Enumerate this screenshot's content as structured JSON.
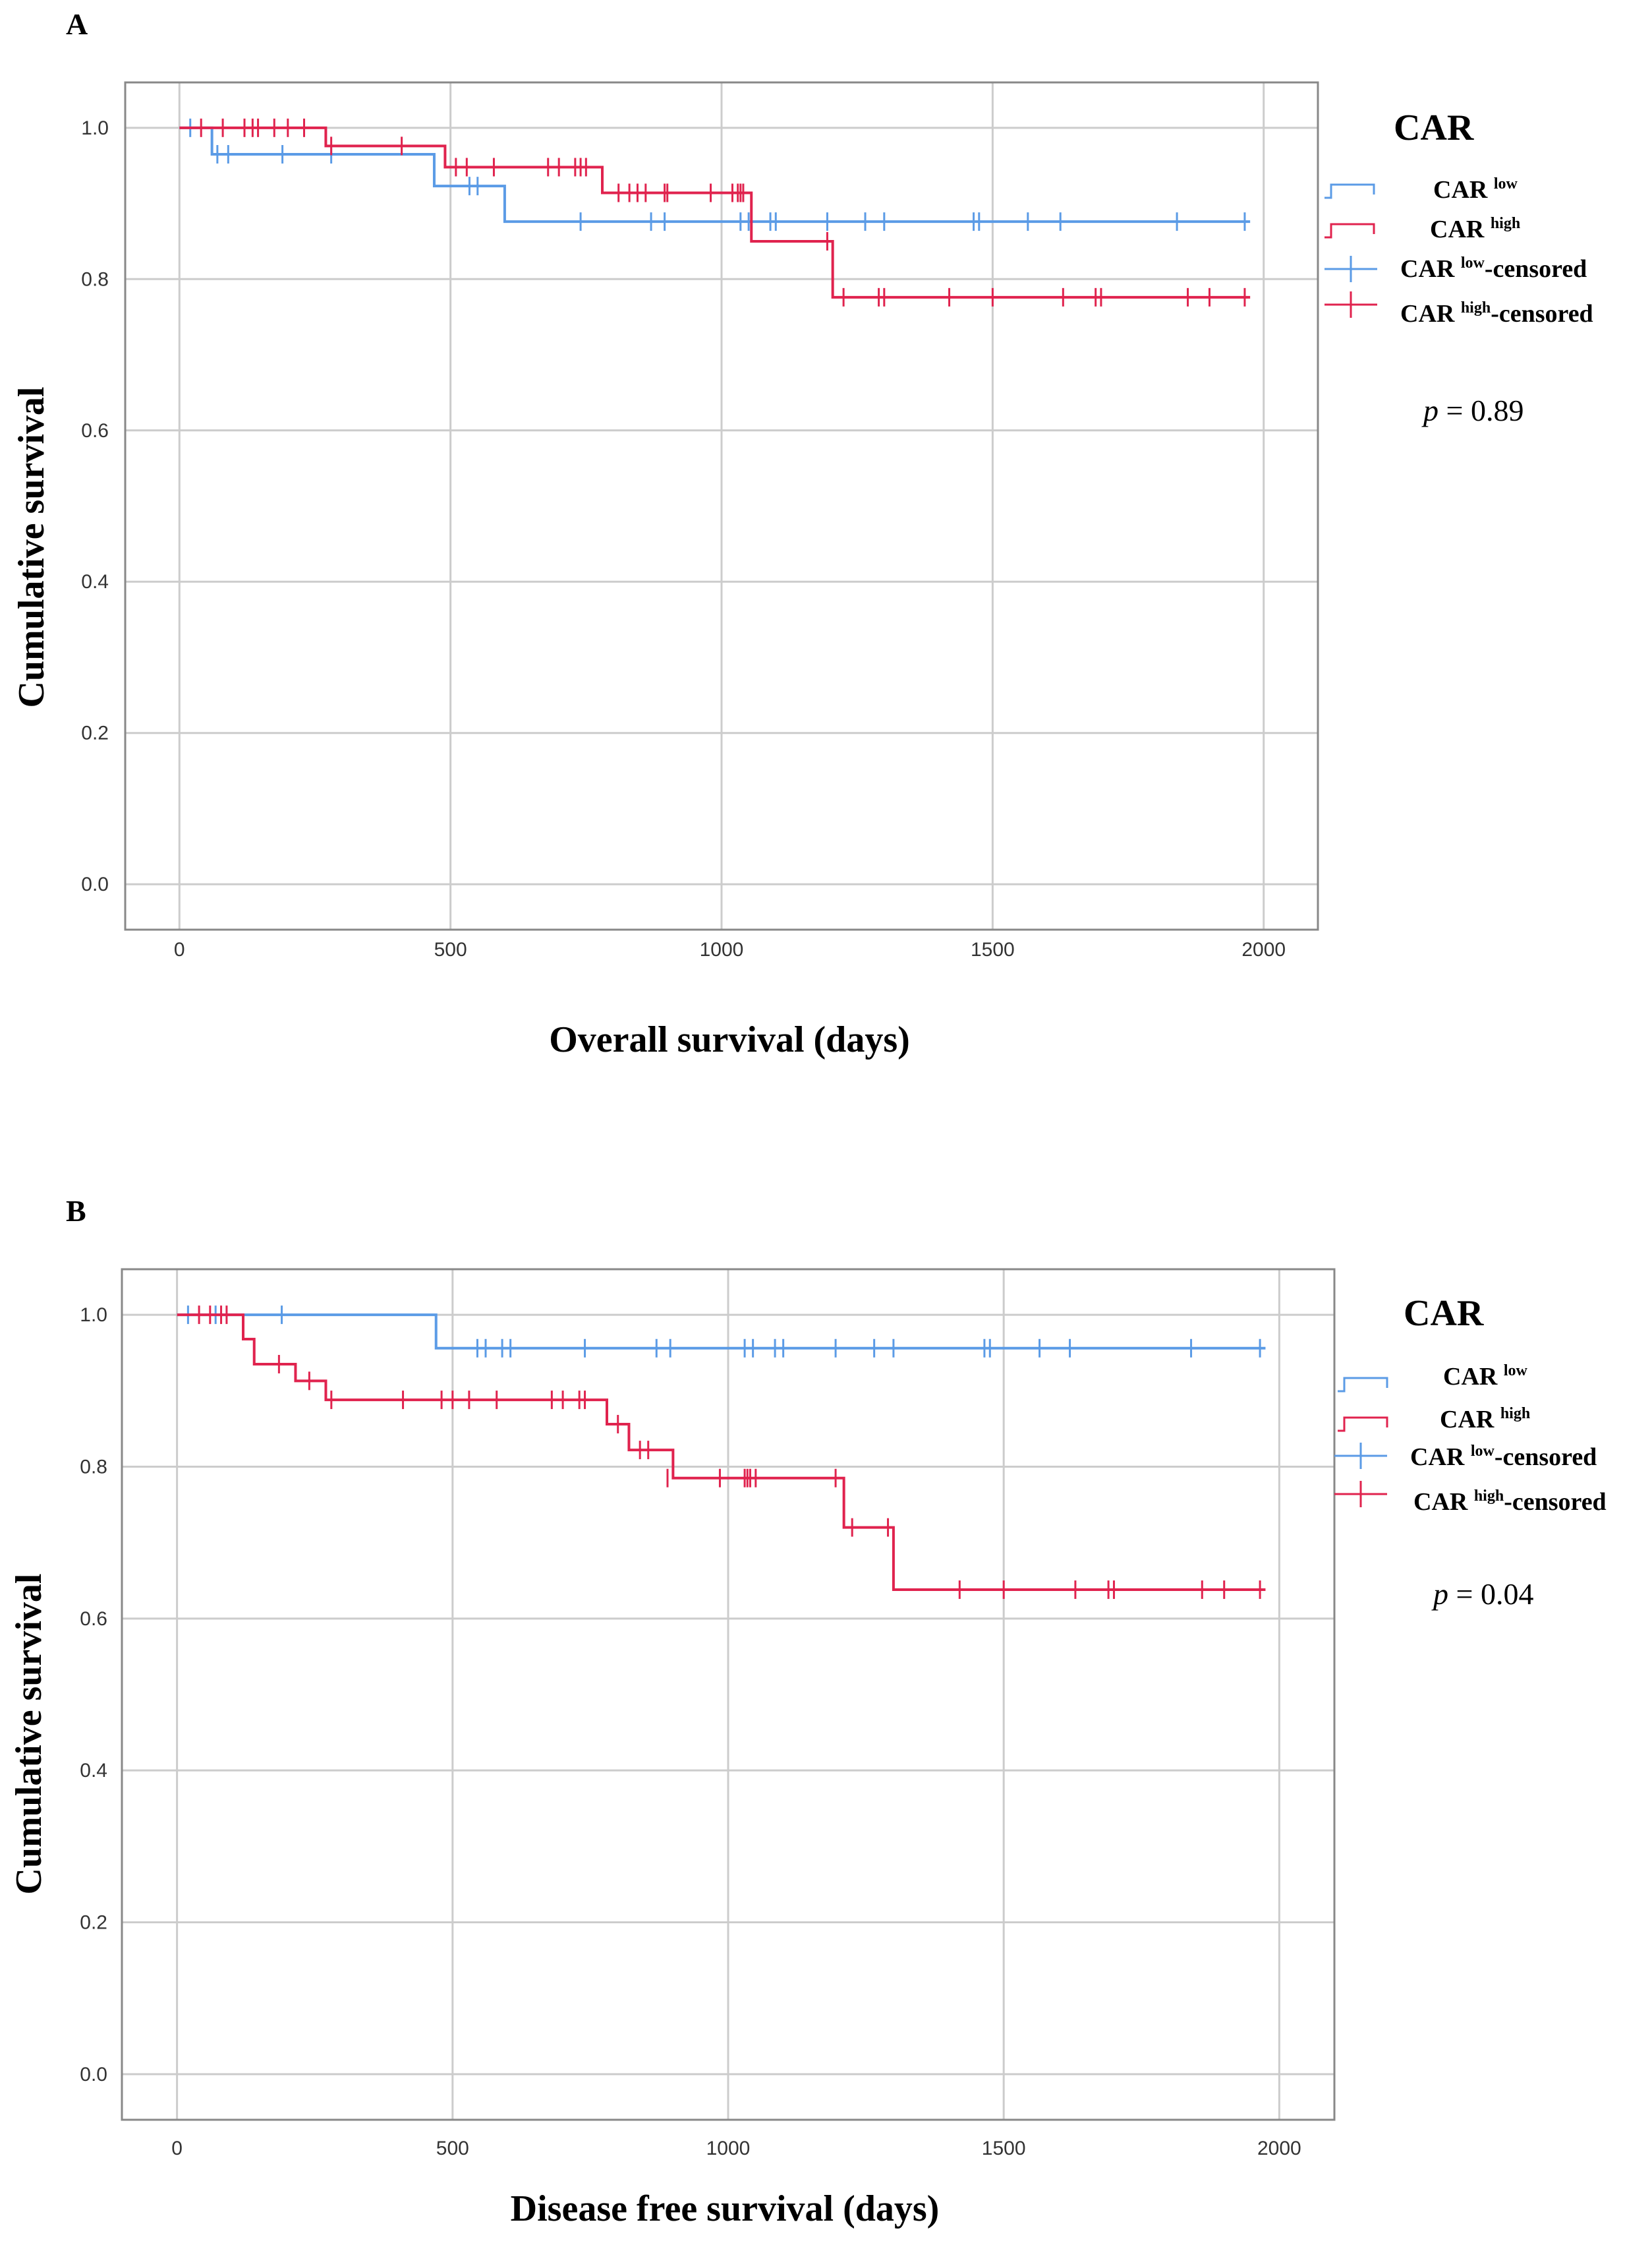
{
  "colors": {
    "low": "#5B9BE6",
    "high": "#E0234E",
    "grid": "#cccccc",
    "axis": "#888888"
  },
  "chart_data": [
    {
      "type": "line",
      "panel": "A",
      "xlabel": "Overall survival (days)",
      "ylabel": "Cumulative survival",
      "xlim": [
        -100,
        2100
      ],
      "ylim": [
        -0.06,
        1.06
      ],
      "xticks": [
        0,
        500,
        1000,
        1500,
        2000
      ],
      "yticks": [
        0.0,
        0.2,
        0.4,
        0.6,
        0.8,
        1.0
      ],
      "xtick_labels": [
        "0",
        "500",
        "1000",
        "1500",
        "2000"
      ],
      "ytick_labels": [
        "0.0",
        "0.2",
        "0.4",
        "0.6",
        "0.8",
        "1.0"
      ],
      "legend": {
        "title": "CAR",
        "items": [
          {
            "base": "CAR ",
            "sup": "low",
            "suffix": ""
          },
          {
            "base": "CAR ",
            "sup": "high",
            "suffix": ""
          },
          {
            "base": "CAR ",
            "sup": "low",
            "suffix": "-censored"
          },
          {
            "base": "CAR ",
            "sup": "high",
            "suffix": "-censored"
          }
        ]
      },
      "p_label": "p",
      "p_value": " = 0.89",
      "series": [
        {
          "name": "CAR low",
          "steps": [
            [
              0,
              1.0
            ],
            [
              60,
              0.965
            ],
            [
              470,
              0.923
            ],
            [
              600,
              0.876
            ],
            [
              1975,
              0.876
            ]
          ],
          "censored": [
            [
              20,
              1.0
            ],
            [
              70,
              0.965
            ],
            [
              90,
              0.965
            ],
            [
              190,
              0.965
            ],
            [
              280,
              0.965
            ],
            [
              535,
              0.923
            ],
            [
              550,
              0.923
            ],
            [
              740,
              0.876
            ],
            [
              870,
              0.876
            ],
            [
              895,
              0.876
            ],
            [
              1035,
              0.876
            ],
            [
              1050,
              0.876
            ],
            [
              1090,
              0.876
            ],
            [
              1100,
              0.876
            ],
            [
              1195,
              0.876
            ],
            [
              1265,
              0.876
            ],
            [
              1300,
              0.876
            ],
            [
              1465,
              0.876
            ],
            [
              1475,
              0.876
            ],
            [
              1565,
              0.876
            ],
            [
              1625,
              0.876
            ],
            [
              1840,
              0.876
            ],
            [
              1965,
              0.876
            ]
          ]
        },
        {
          "name": "CAR high",
          "steps": [
            [
              0,
              1.0
            ],
            [
              270,
              0.976
            ],
            [
              490,
              0.948
            ],
            [
              780,
              0.914
            ],
            [
              1055,
              0.85
            ],
            [
              1205,
              0.776
            ],
            [
              1975,
              0.776
            ]
          ],
          "censored": [
            [
              40,
              1.0
            ],
            [
              80,
              1.0
            ],
            [
              120,
              1.0
            ],
            [
              135,
              1.0
            ],
            [
              145,
              1.0
            ],
            [
              175,
              1.0
            ],
            [
              200,
              1.0
            ],
            [
              230,
              1.0
            ],
            [
              280,
              0.976
            ],
            [
              410,
              0.976
            ],
            [
              510,
              0.948
            ],
            [
              530,
              0.948
            ],
            [
              580,
              0.948
            ],
            [
              680,
              0.948
            ],
            [
              700,
              0.948
            ],
            [
              730,
              0.948
            ],
            [
              740,
              0.948
            ],
            [
              750,
              0.948
            ],
            [
              810,
              0.914
            ],
            [
              830,
              0.914
            ],
            [
              845,
              0.914
            ],
            [
              860,
              0.914
            ],
            [
              895,
              0.914
            ],
            [
              900,
              0.914
            ],
            [
              980,
              0.914
            ],
            [
              1020,
              0.914
            ],
            [
              1030,
              0.914
            ],
            [
              1035,
              0.914
            ],
            [
              1040,
              0.914
            ],
            [
              1195,
              0.85
            ],
            [
              1225,
              0.776
            ],
            [
              1290,
              0.776
            ],
            [
              1300,
              0.776
            ],
            [
              1420,
              0.776
            ],
            [
              1500,
              0.776
            ],
            [
              1630,
              0.776
            ],
            [
              1690,
              0.776
            ],
            [
              1700,
              0.776
            ],
            [
              1860,
              0.776
            ],
            [
              1900,
              0.776
            ],
            [
              1965,
              0.776
            ]
          ]
        }
      ]
    },
    {
      "type": "line",
      "panel": "B",
      "xlabel": "Disease free survival (days)",
      "ylabel": "Cumulative survival",
      "xlim": [
        -100,
        2100
      ],
      "ylim": [
        -0.06,
        1.06
      ],
      "xticks": [
        0,
        500,
        1000,
        1500,
        2000
      ],
      "yticks": [
        0.0,
        0.2,
        0.4,
        0.6,
        0.8,
        1.0
      ],
      "xtick_labels": [
        "0",
        "500",
        "1000",
        "1500",
        "2000"
      ],
      "ytick_labels": [
        "0.0",
        "0.2",
        "0.4",
        "0.6",
        "0.8",
        "1.0"
      ],
      "legend": {
        "title": "CAR",
        "items": [
          {
            "base": "CAR ",
            "sup": "low",
            "suffix": ""
          },
          {
            "base": "CAR ",
            "sup": "high",
            "suffix": ""
          },
          {
            "base": "CAR ",
            "sup": "low",
            "suffix": "-censored"
          },
          {
            "base": "CAR ",
            "sup": "high",
            "suffix": "-censored"
          }
        ]
      },
      "p_label": "p",
      "p_value": " = 0.04",
      "series": [
        {
          "name": "CAR low",
          "steps": [
            [
              0,
              1.0
            ],
            [
              470,
              0.956
            ],
            [
              1975,
              0.956
            ]
          ],
          "censored": [
            [
              20,
              1.0
            ],
            [
              70,
              1.0
            ],
            [
              190,
              1.0
            ],
            [
              545,
              0.956
            ],
            [
              560,
              0.956
            ],
            [
              590,
              0.956
            ],
            [
              605,
              0.956
            ],
            [
              740,
              0.956
            ],
            [
              870,
              0.956
            ],
            [
              895,
              0.956
            ],
            [
              1030,
              0.956
            ],
            [
              1045,
              0.956
            ],
            [
              1085,
              0.956
            ],
            [
              1100,
              0.956
            ],
            [
              1195,
              0.956
            ],
            [
              1265,
              0.956
            ],
            [
              1300,
              0.956
            ],
            [
              1465,
              0.956
            ],
            [
              1475,
              0.956
            ],
            [
              1565,
              0.956
            ],
            [
              1620,
              0.956
            ],
            [
              1840,
              0.956
            ],
            [
              1965,
              0.956
            ]
          ]
        },
        {
          "name": "CAR high",
          "steps": [
            [
              0,
              1.0
            ],
            [
              120,
              0.968
            ],
            [
              140,
              0.935
            ],
            [
              215,
              0.913
            ],
            [
              270,
              0.888
            ],
            [
              780,
              0.856
            ],
            [
              820,
              0.822
            ],
            [
              900,
              0.785
            ],
            [
              1210,
              0.72
            ],
            [
              1300,
              0.638
            ],
            [
              1975,
              0.638
            ]
          ],
          "censored": [
            [
              40,
              1.0
            ],
            [
              60,
              1.0
            ],
            [
              80,
              1.0
            ],
            [
              90,
              1.0
            ],
            [
              185,
              0.935
            ],
            [
              240,
              0.913
            ],
            [
              280,
              0.888
            ],
            [
              410,
              0.888
            ],
            [
              480,
              0.888
            ],
            [
              500,
              0.888
            ],
            [
              530,
              0.888
            ],
            [
              580,
              0.888
            ],
            [
              680,
              0.888
            ],
            [
              700,
              0.888
            ],
            [
              730,
              0.888
            ],
            [
              740,
              0.888
            ],
            [
              800,
              0.856
            ],
            [
              840,
              0.822
            ],
            [
              855,
              0.822
            ],
            [
              890,
              0.785
            ],
            [
              985,
              0.785
            ],
            [
              1030,
              0.785
            ],
            [
              1035,
              0.785
            ],
            [
              1040,
              0.785
            ],
            [
              1050,
              0.785
            ],
            [
              1195,
              0.785
            ],
            [
              1225,
              0.72
            ],
            [
              1290,
              0.72
            ],
            [
              1420,
              0.638
            ],
            [
              1500,
              0.638
            ],
            [
              1630,
              0.638
            ],
            [
              1690,
              0.638
            ],
            [
              1700,
              0.638
            ],
            [
              1860,
              0.638
            ],
            [
              1900,
              0.638
            ],
            [
              1965,
              0.638
            ]
          ]
        }
      ]
    }
  ]
}
